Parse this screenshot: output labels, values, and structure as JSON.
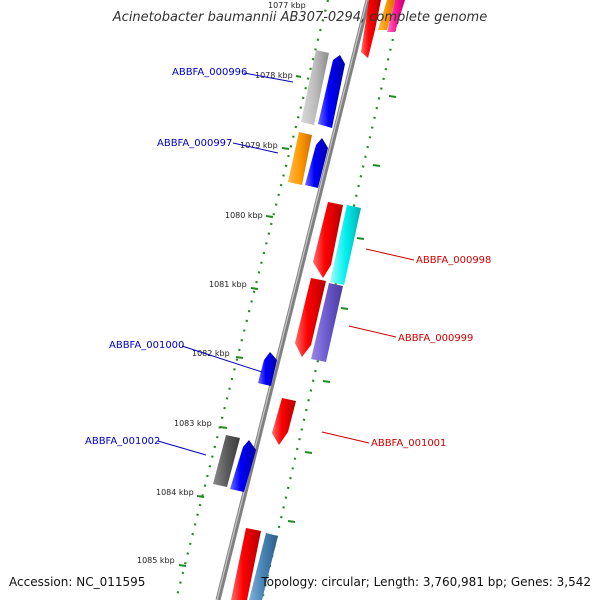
{
  "title": "Acinetobacter baumannii AB307-0294, complete genome",
  "footer": {
    "accession": "Accession: NC_011595",
    "summary": "Topology: circular; Length: 3,760,981 bp; Genes: 3,542"
  },
  "ticks": [
    {
      "label": "1077 kbp"
    },
    {
      "label": "1078 kbp"
    },
    {
      "label": "1079 kbp"
    },
    {
      "label": "1080 kbp"
    },
    {
      "label": "1081 kbp"
    },
    {
      "label": "1082 kbp"
    },
    {
      "label": "1083 kbp"
    },
    {
      "label": "1084 kbp"
    },
    {
      "label": "1085 kbp"
    }
  ],
  "gene_labels": [
    {
      "text": "ABBFA_000996",
      "strand": "reverse",
      "color": "#0000bb"
    },
    {
      "text": "ABBFA_000997",
      "strand": "reverse",
      "color": "#0000bb"
    },
    {
      "text": "ABBFA_000998",
      "strand": "forward",
      "color": "#cc0000"
    },
    {
      "text": "ABBFA_000999",
      "strand": "forward",
      "color": "#cc0000"
    },
    {
      "text": "ABBFA_001000",
      "strand": "reverse",
      "color": "#0000bb"
    },
    {
      "text": "ABBFA_001001",
      "strand": "forward",
      "color": "#cc0000"
    },
    {
      "text": "ABBFA_001002",
      "strand": "reverse",
      "color": "#0000bb"
    }
  ],
  "colors": {
    "backbone": "#808080",
    "forward_gene": "#ff0000",
    "reverse_gene": "#0000ff",
    "dots": "#228b22"
  }
}
